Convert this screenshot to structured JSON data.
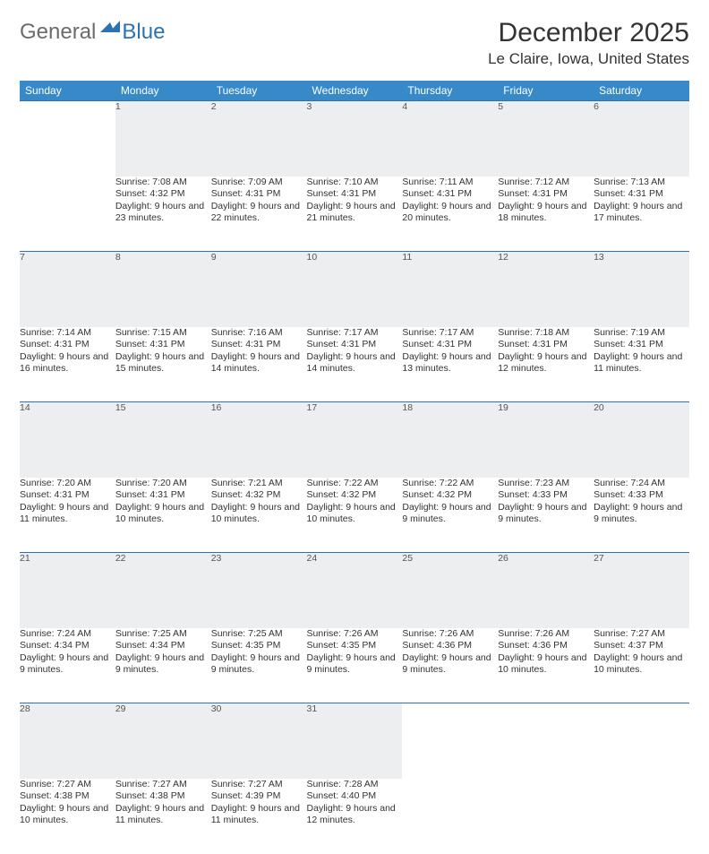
{
  "logo": {
    "general": "General",
    "blue": "Blue",
    "mark_color": "#2a72b5"
  },
  "title": "December 2025",
  "location": "Le Claire, Iowa, United States",
  "header_bg": "#3789c8",
  "header_fg": "#ffffff",
  "daynum_bg": "#eceeef",
  "rule_color": "#2a72b5",
  "weekdays": [
    "Sunday",
    "Monday",
    "Tuesday",
    "Wednesday",
    "Thursday",
    "Friday",
    "Saturday"
  ],
  "weeks": [
    [
      null,
      {
        "n": "1",
        "sr": "7:08 AM",
        "ss": "4:32 PM",
        "d": "9 hours and 23 minutes."
      },
      {
        "n": "2",
        "sr": "7:09 AM",
        "ss": "4:31 PM",
        "d": "9 hours and 22 minutes."
      },
      {
        "n": "3",
        "sr": "7:10 AM",
        "ss": "4:31 PM",
        "d": "9 hours and 21 minutes."
      },
      {
        "n": "4",
        "sr": "7:11 AM",
        "ss": "4:31 PM",
        "d": "9 hours and 20 minutes."
      },
      {
        "n": "5",
        "sr": "7:12 AM",
        "ss": "4:31 PM",
        "d": "9 hours and 18 minutes."
      },
      {
        "n": "6",
        "sr": "7:13 AM",
        "ss": "4:31 PM",
        "d": "9 hours and 17 minutes."
      }
    ],
    [
      {
        "n": "7",
        "sr": "7:14 AM",
        "ss": "4:31 PM",
        "d": "9 hours and 16 minutes."
      },
      {
        "n": "8",
        "sr": "7:15 AM",
        "ss": "4:31 PM",
        "d": "9 hours and 15 minutes."
      },
      {
        "n": "9",
        "sr": "7:16 AM",
        "ss": "4:31 PM",
        "d": "9 hours and 14 minutes."
      },
      {
        "n": "10",
        "sr": "7:17 AM",
        "ss": "4:31 PM",
        "d": "9 hours and 14 minutes."
      },
      {
        "n": "11",
        "sr": "7:17 AM",
        "ss": "4:31 PM",
        "d": "9 hours and 13 minutes."
      },
      {
        "n": "12",
        "sr": "7:18 AM",
        "ss": "4:31 PM",
        "d": "9 hours and 12 minutes."
      },
      {
        "n": "13",
        "sr": "7:19 AM",
        "ss": "4:31 PM",
        "d": "9 hours and 11 minutes."
      }
    ],
    [
      {
        "n": "14",
        "sr": "7:20 AM",
        "ss": "4:31 PM",
        "d": "9 hours and 11 minutes."
      },
      {
        "n": "15",
        "sr": "7:20 AM",
        "ss": "4:31 PM",
        "d": "9 hours and 10 minutes."
      },
      {
        "n": "16",
        "sr": "7:21 AM",
        "ss": "4:32 PM",
        "d": "9 hours and 10 minutes."
      },
      {
        "n": "17",
        "sr": "7:22 AM",
        "ss": "4:32 PM",
        "d": "9 hours and 10 minutes."
      },
      {
        "n": "18",
        "sr": "7:22 AM",
        "ss": "4:32 PM",
        "d": "9 hours and 9 minutes."
      },
      {
        "n": "19",
        "sr": "7:23 AM",
        "ss": "4:33 PM",
        "d": "9 hours and 9 minutes."
      },
      {
        "n": "20",
        "sr": "7:24 AM",
        "ss": "4:33 PM",
        "d": "9 hours and 9 minutes."
      }
    ],
    [
      {
        "n": "21",
        "sr": "7:24 AM",
        "ss": "4:34 PM",
        "d": "9 hours and 9 minutes."
      },
      {
        "n": "22",
        "sr": "7:25 AM",
        "ss": "4:34 PM",
        "d": "9 hours and 9 minutes."
      },
      {
        "n": "23",
        "sr": "7:25 AM",
        "ss": "4:35 PM",
        "d": "9 hours and 9 minutes."
      },
      {
        "n": "24",
        "sr": "7:26 AM",
        "ss": "4:35 PM",
        "d": "9 hours and 9 minutes."
      },
      {
        "n": "25",
        "sr": "7:26 AM",
        "ss": "4:36 PM",
        "d": "9 hours and 9 minutes."
      },
      {
        "n": "26",
        "sr": "7:26 AM",
        "ss": "4:36 PM",
        "d": "9 hours and 10 minutes."
      },
      {
        "n": "27",
        "sr": "7:27 AM",
        "ss": "4:37 PM",
        "d": "9 hours and 10 minutes."
      }
    ],
    [
      {
        "n": "28",
        "sr": "7:27 AM",
        "ss": "4:38 PM",
        "d": "9 hours and 10 minutes."
      },
      {
        "n": "29",
        "sr": "7:27 AM",
        "ss": "4:38 PM",
        "d": "9 hours and 11 minutes."
      },
      {
        "n": "30",
        "sr": "7:27 AM",
        "ss": "4:39 PM",
        "d": "9 hours and 11 minutes."
      },
      {
        "n": "31",
        "sr": "7:28 AM",
        "ss": "4:40 PM",
        "d": "9 hours and 12 minutes."
      },
      null,
      null,
      null
    ]
  ],
  "labels": {
    "sunrise": "Sunrise:",
    "sunset": "Sunset:",
    "daylight": "Daylight:"
  }
}
